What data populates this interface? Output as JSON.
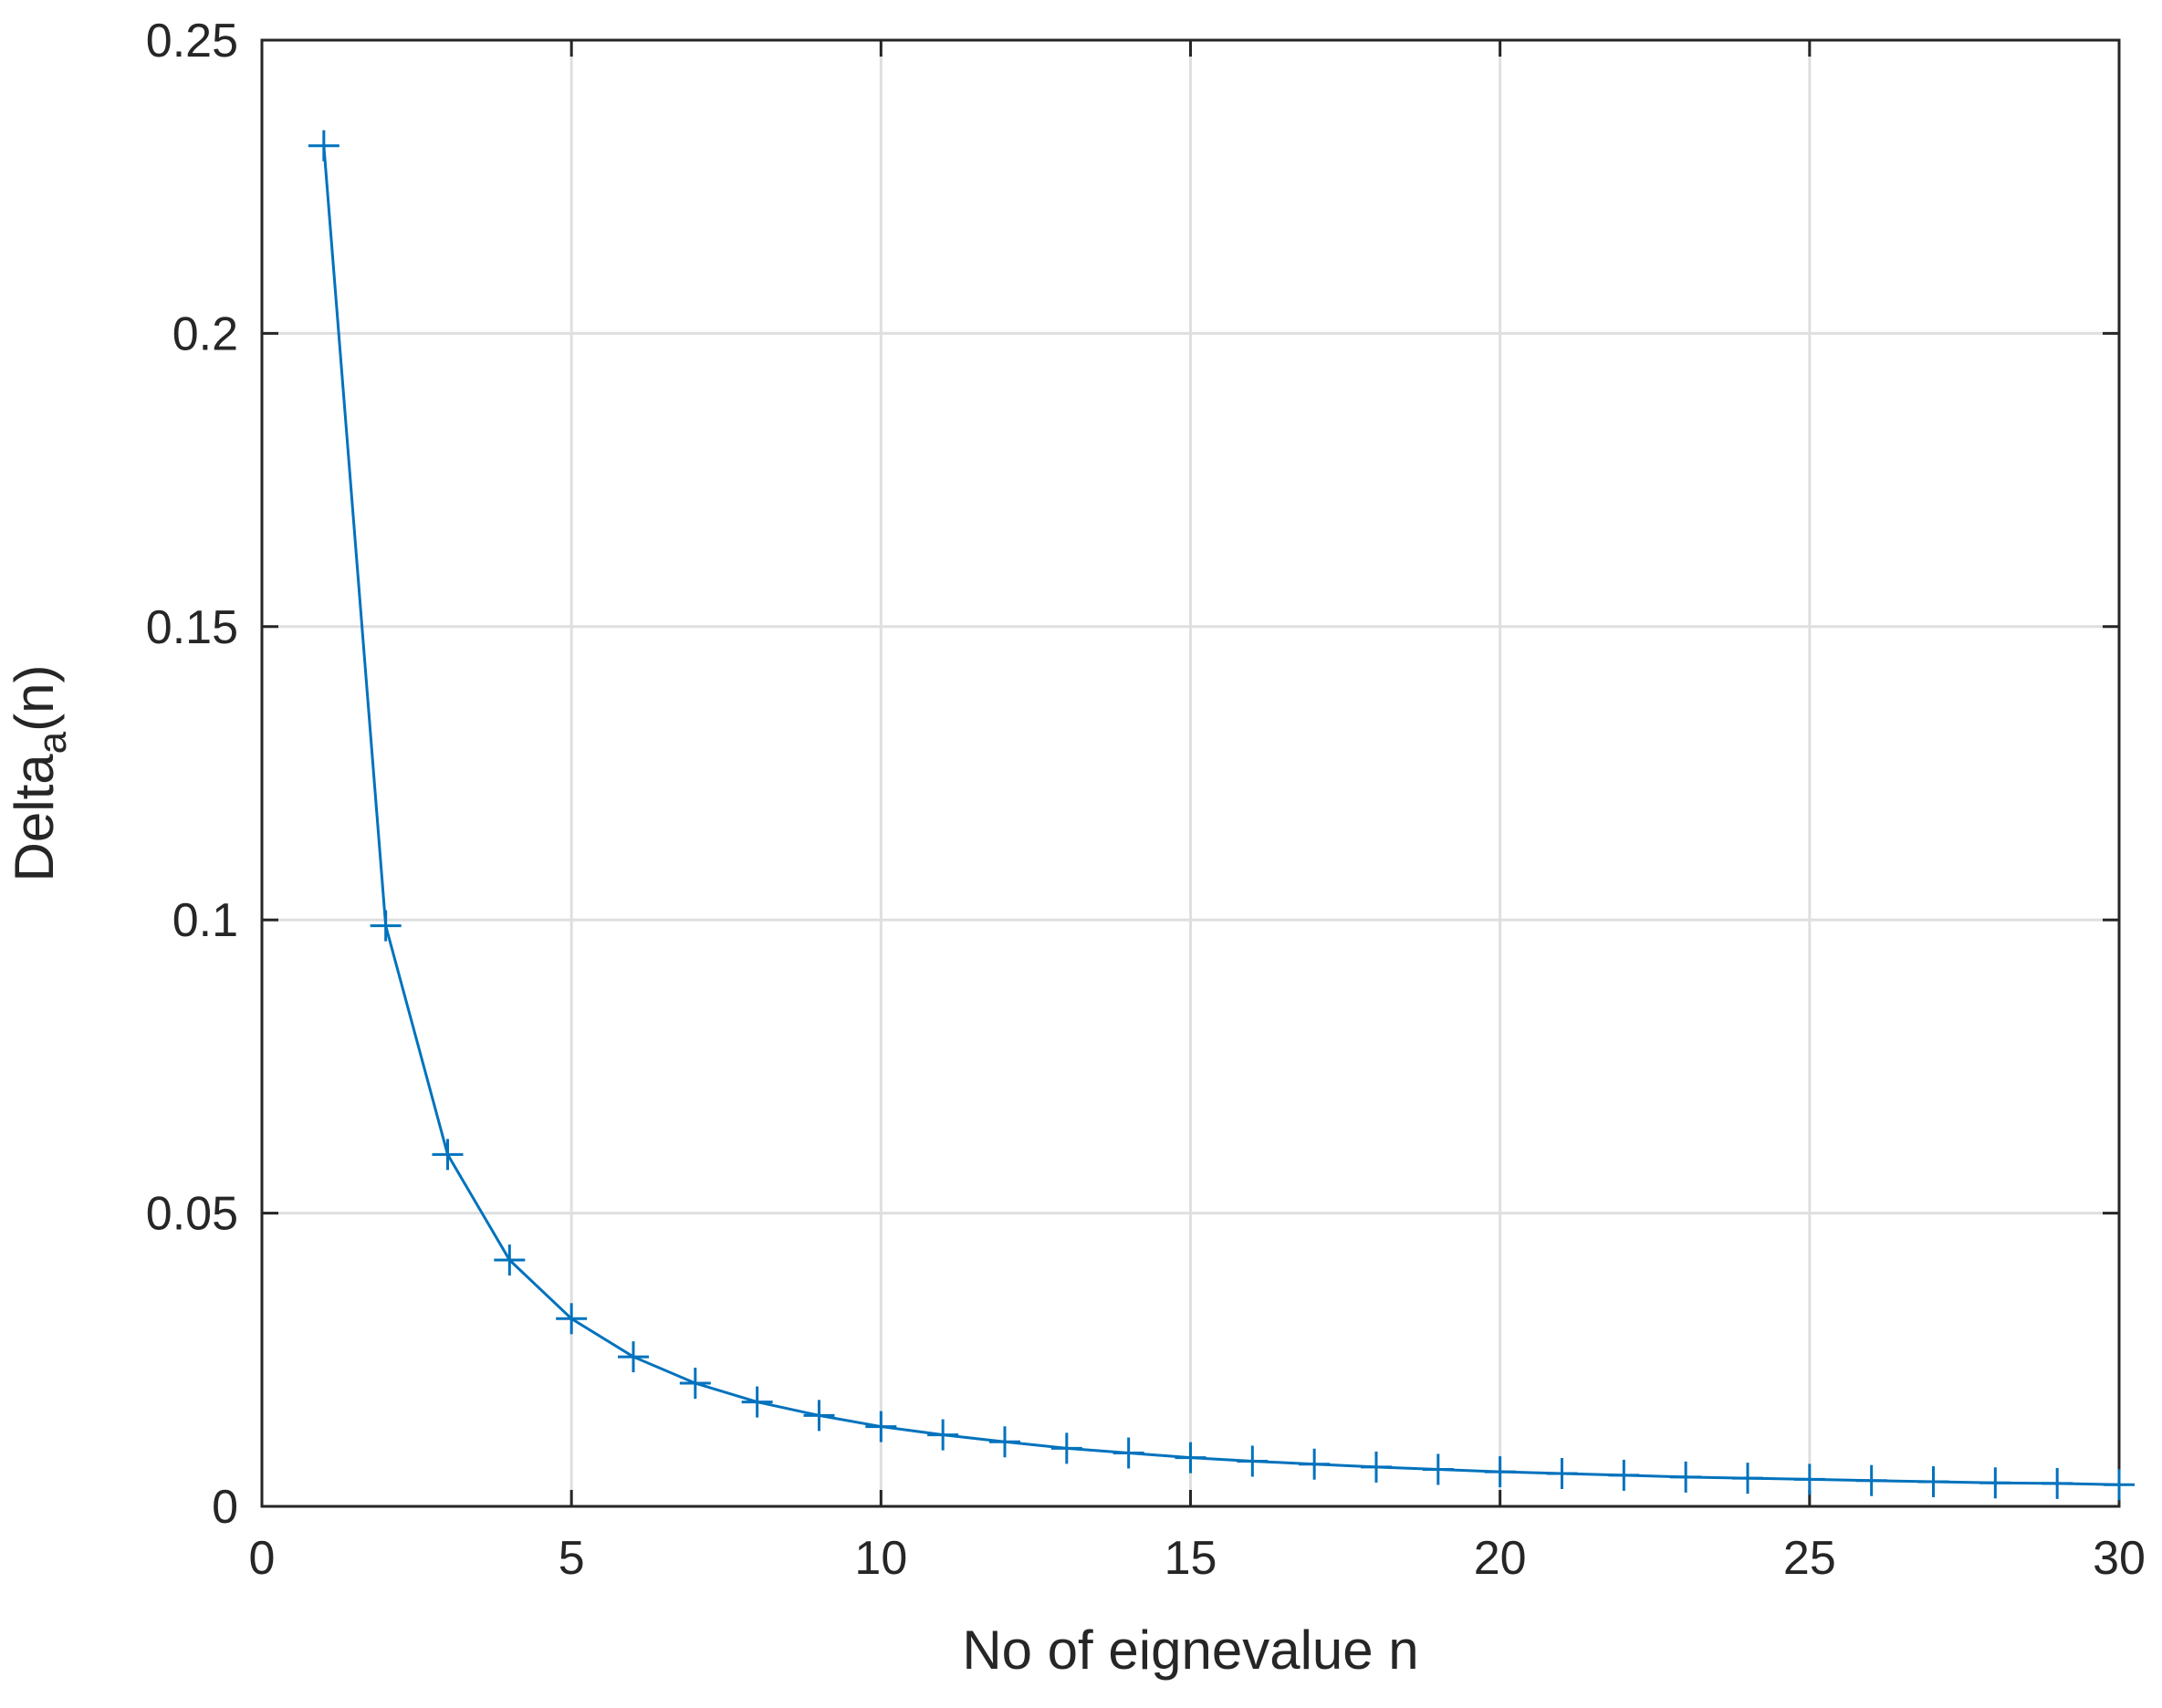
{
  "chart_data": {
    "type": "line",
    "title": "",
    "xlabel": "No of eignevalue n",
    "ylabel_main": "Delta",
    "ylabel_sub": "a",
    "ylabel_tail": "(n)",
    "xlim": [
      0,
      30
    ],
    "ylim": [
      0,
      0.25
    ],
    "grid": true,
    "legend": "none",
    "xticks": [
      0,
      5,
      10,
      15,
      20,
      25,
      30
    ],
    "xtick_labels": [
      "0",
      "5",
      "10",
      "15",
      "20",
      "25",
      "30"
    ],
    "yticks": [
      0,
      0.05,
      0.1,
      0.15,
      0.2,
      0.25
    ],
    "ytick_labels": [
      "0",
      "0.05",
      "0.1",
      "0.15",
      "0.2",
      "0.25"
    ],
    "series": [
      {
        "color": "#0072bd",
        "marker": "plus",
        "x": [
          1,
          2,
          3,
          4,
          5,
          6,
          7,
          8,
          9,
          10,
          11,
          12,
          13,
          14,
          15,
          16,
          17,
          18,
          19,
          20,
          21,
          22,
          23,
          24,
          25,
          26,
          27,
          28,
          29,
          30
        ],
        "y": [
          0.232,
          0.099,
          0.06,
          0.042,
          0.032,
          0.0255,
          0.021,
          0.0178,
          0.0155,
          0.0136,
          0.0122,
          0.011,
          0.0099,
          0.0091,
          0.0083,
          0.0077,
          0.0072,
          0.0067,
          0.0063,
          0.0059,
          0.0056,
          0.0053,
          0.005,
          0.0048,
          0.0046,
          0.0044,
          0.0042,
          0.004,
          0.0039,
          0.0037
        ]
      }
    ]
  }
}
